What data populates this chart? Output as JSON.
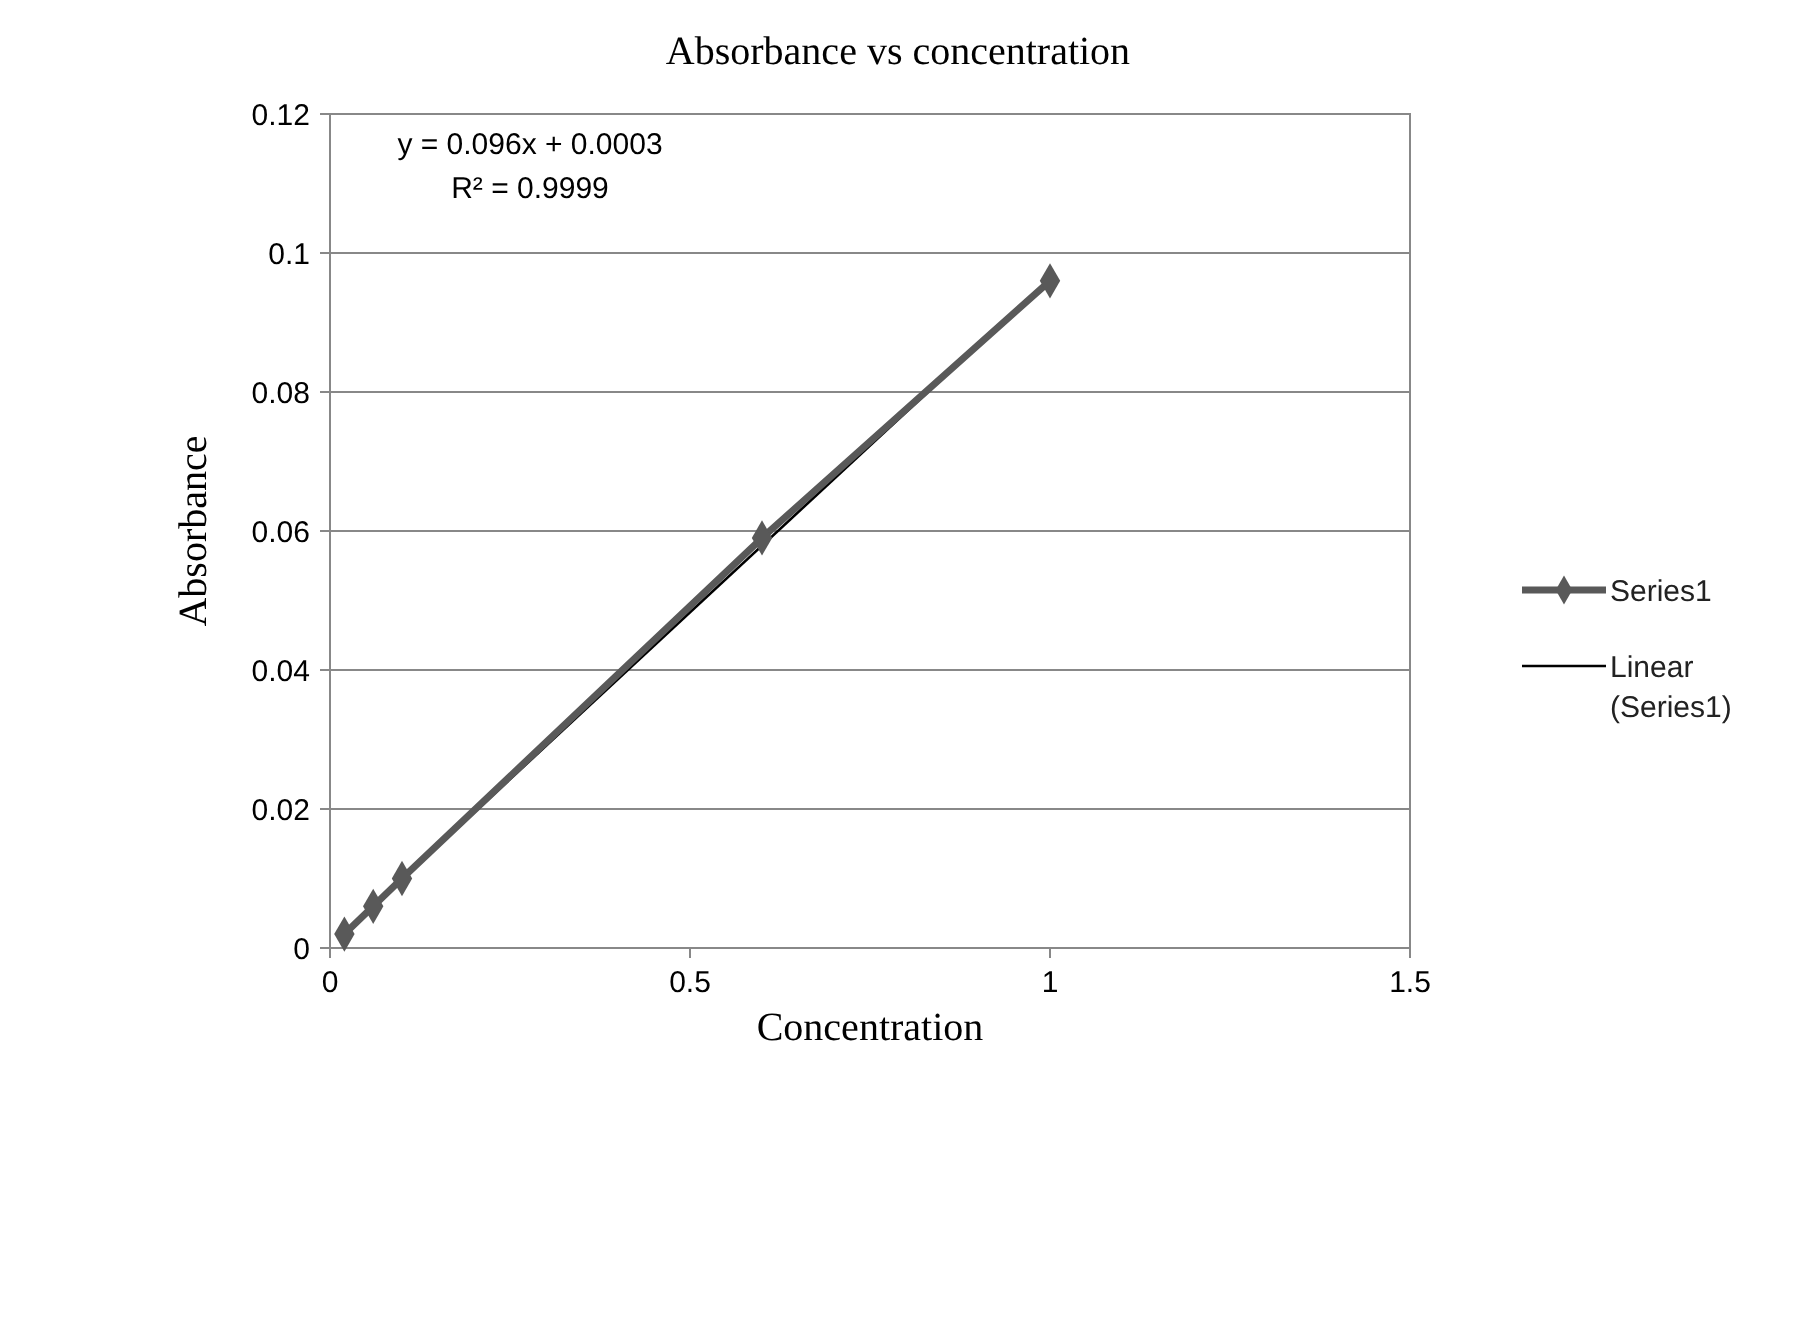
{
  "chart_data": {
    "type": "line",
    "title": "Absorbance vs concentration",
    "xlabel": "Concentration",
    "ylabel": "Absorbance",
    "xlim": [
      0,
      1.5
    ],
    "xticks": [
      0,
      0.5,
      1,
      1.5
    ],
    "ylim": [
      0,
      0.12
    ],
    "yticks": [
      0,
      0.02,
      0.04,
      0.06,
      0.08,
      0.1,
      0.12
    ],
    "grid": "y",
    "legend": "right",
    "marker": "diamond",
    "line_style": "solid",
    "annotations": [
      "y = 0.096x + 0.0003",
      "R² = 0.9999"
    ],
    "series": [
      {
        "name": "Series1",
        "color": "#595959",
        "x": [
          0.02,
          0.06,
          0.1,
          0.6,
          1
        ],
        "values": [
          0.002,
          0.006,
          0.01,
          0.059,
          0.096
        ]
      },
      {
        "name": "Linear (Series1)",
        "type": "line",
        "color": "#000000",
        "marker": "none",
        "x": [
          0.02,
          1
        ],
        "values": [
          0.0022,
          0.0963
        ]
      }
    ]
  }
}
